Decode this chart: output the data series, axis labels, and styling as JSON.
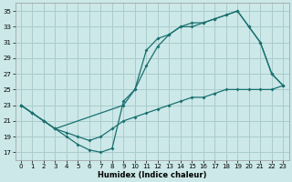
{
  "title": "",
  "xlabel": "Humidex (Indice chaleur)",
  "bg_color": "#cce8e8",
  "grid_color": "#aacccc",
  "line_color": "#1a7070",
  "xlim": [
    -0.5,
    23.5
  ],
  "ylim": [
    16.0,
    36.0
  ],
  "yticks": [
    17,
    19,
    21,
    23,
    25,
    27,
    29,
    31,
    33,
    35
  ],
  "xticks": [
    0,
    1,
    2,
    3,
    4,
    5,
    6,
    7,
    8,
    9,
    10,
    11,
    12,
    13,
    14,
    15,
    16,
    17,
    18,
    19,
    20,
    21,
    22,
    23
  ],
  "line1_x": [
    0,
    1,
    2,
    3,
    4,
    5,
    6,
    7,
    8,
    9,
    10,
    11,
    12,
    13,
    14,
    15,
    16,
    17,
    18,
    19,
    20,
    21,
    22,
    23
  ],
  "line1_y": [
    23,
    22,
    21,
    20,
    19,
    18,
    17.3,
    17,
    17.5,
    23.5,
    25,
    30,
    31.5,
    32,
    33,
    33.5,
    33.5,
    34,
    34.5,
    35,
    33,
    31,
    27,
    25.5
  ],
  "line2_x": [
    0,
    1,
    2,
    3,
    9,
    10,
    11,
    12,
    13,
    14,
    15,
    16,
    17,
    18,
    19,
    20,
    21,
    22,
    23
  ],
  "line2_y": [
    23,
    22,
    21,
    20,
    23,
    25,
    28,
    30.5,
    32,
    33,
    33,
    33.5,
    34,
    34.5,
    35,
    33,
    31,
    27,
    25.5
  ],
  "line3_x": [
    0,
    1,
    2,
    3,
    4,
    5,
    6,
    7,
    8,
    9,
    10,
    11,
    12,
    13,
    14,
    15,
    16,
    17,
    18,
    19,
    20,
    21,
    22,
    23
  ],
  "line3_y": [
    23,
    22,
    21,
    20,
    19.5,
    19,
    18.5,
    19,
    20,
    21,
    21.5,
    22,
    22.5,
    23,
    23.5,
    24,
    24,
    24.5,
    25,
    25,
    25,
    25,
    25,
    25.5
  ],
  "xlabel_fontsize": 6,
  "tick_fontsize": 5
}
